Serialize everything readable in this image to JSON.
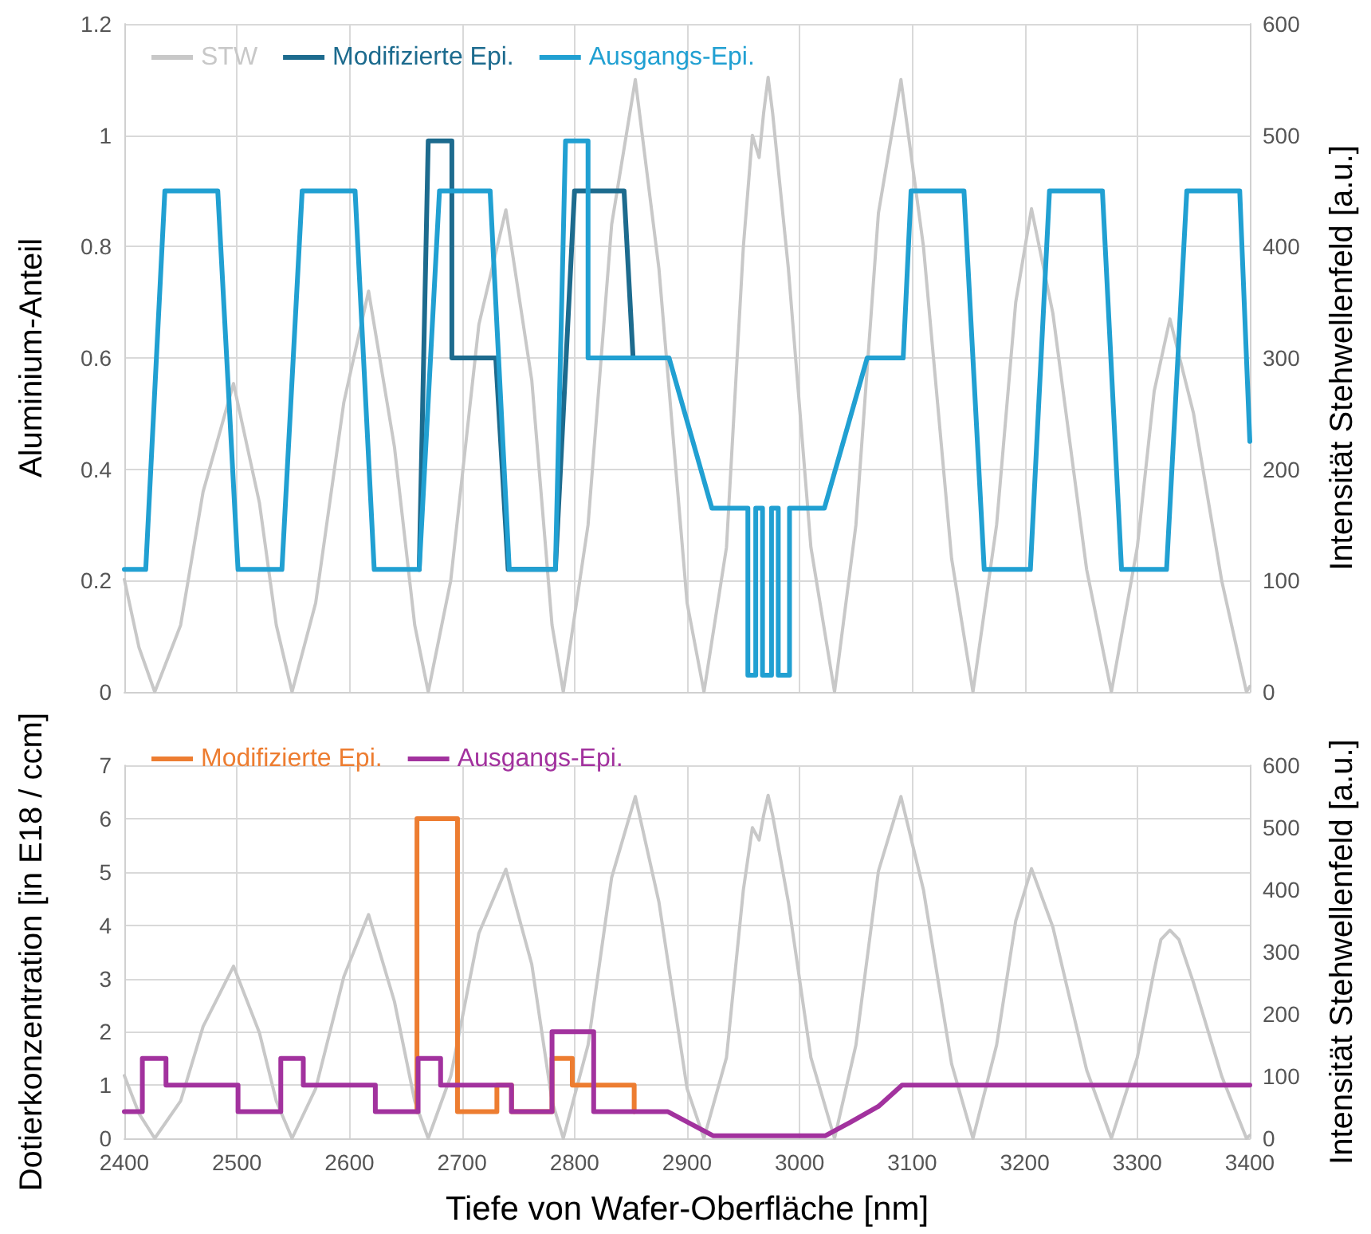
{
  "chart_data": [
    {
      "type": "line",
      "ylabel": "Aluminium-Anteil",
      "y2label": "Intensität Stehwellenfeld [a.u.]",
      "xlim": [
        2400,
        3400
      ],
      "xticks": [
        2400,
        2500,
        2600,
        2700,
        2800,
        2900,
        3000,
        3100,
        3200,
        3300,
        3400
      ],
      "ylim": [
        0,
        1.2
      ],
      "yticks": [
        0,
        0.2,
        0.4,
        0.6,
        0.8,
        1,
        1.2
      ],
      "y2lim": [
        0,
        600
      ],
      "y2ticks": [
        0,
        100,
        200,
        300,
        400,
        500,
        600
      ],
      "grid": true,
      "legend": "top left",
      "marker": "none",
      "tick_labels": "y",
      "series": [
        {
          "name": "STW",
          "color": "#c8c8c8",
          "axis": "y2",
          "x": [
            2400,
            2413,
            2427,
            2450,
            2470,
            2497,
            2520,
            2535,
            2549,
            2570,
            2595,
            2617,
            2640,
            2658,
            2670,
            2690,
            2715,
            2739,
            2762,
            2780,
            2790,
            2812,
            2833,
            2854,
            2875,
            2900,
            2915,
            2935,
            2950,
            2958,
            2964,
            2968,
            2972,
            2976,
            2980,
            2990,
            3010,
            3031,
            3050,
            3070,
            3090,
            3110,
            3135,
            3154,
            3175,
            3192,
            3206,
            3225,
            3255,
            3277,
            3300,
            3315,
            3329,
            3350,
            3375,
            3397,
            3400
          ],
          "values": [
            101,
            40,
            0,
            60,
            180,
            277,
            170,
            60,
            0,
            80,
            260,
            360,
            220,
            60,
            0,
            100,
            330,
            433,
            280,
            60,
            0,
            150,
            420,
            550,
            380,
            80,
            0,
            130,
            400,
            500,
            480,
            520,
            552,
            520,
            480,
            380,
            130,
            0,
            150,
            430,
            550,
            400,
            120,
            0,
            150,
            350,
            434,
            340,
            110,
            0,
            130,
            270,
            335,
            250,
            100,
            0,
            5
          ]
        },
        {
          "name": "Modifizierte Epi.",
          "color": "#1d6b8e",
          "x": [
            2662,
            2670,
            2691,
            2691,
            2730,
            2741,
            2783,
            2800,
            2844,
            2852
          ],
          "values": [
            0.22,
            0.99,
            0.99,
            0.6,
            0.6,
            0.22,
            0.22,
            0.9,
            0.9,
            0.6
          ]
        },
        {
          "name": "Ausgangs-Epi.",
          "color": "#21a0d2",
          "x": [
            2400,
            2419,
            2436,
            2483,
            2501,
            2540,
            2558,
            2605,
            2622,
            2662,
            2680,
            2725,
            2742,
            2783,
            2792,
            2812,
            2812,
            2884,
            2922,
            2954,
            2954,
            2961,
            2961,
            2967,
            2967,
            2975,
            2975,
            2981,
            2981,
            2991,
            2991,
            3022,
            3060,
            3092,
            3099,
            3146,
            3164,
            3205,
            3222,
            3269,
            3286,
            3326,
            3344,
            3391,
            3400
          ],
          "values": [
            0.22,
            0.22,
            0.9,
            0.9,
            0.22,
            0.22,
            0.9,
            0.9,
            0.22,
            0.22,
            0.9,
            0.9,
            0.22,
            0.22,
            0.99,
            0.99,
            0.6,
            0.6,
            0.33,
            0.33,
            0.03,
            0.03,
            0.33,
            0.33,
            0.03,
            0.03,
            0.33,
            0.33,
            0.03,
            0.03,
            0.33,
            0.33,
            0.6,
            0.6,
            0.9,
            0.9,
            0.22,
            0.22,
            0.9,
            0.9,
            0.22,
            0.22,
            0.9,
            0.9,
            0.45
          ]
        }
      ]
    },
    {
      "type": "line",
      "xlabel": "Tiefe von Wafer-Oberfläche [nm]",
      "ylabel": "Dotierkonzentration [in E18 / ccm]",
      "y2label": "Intensität Stehwellenfeld [a.u.]",
      "xlim": [
        2400,
        3400
      ],
      "xticks": [
        2400,
        2500,
        2600,
        2700,
        2800,
        2900,
        3000,
        3100,
        3200,
        3300,
        3400
      ],
      "ylim": [
        0,
        7
      ],
      "yticks": [
        0,
        1,
        2,
        3,
        4,
        5,
        6,
        7
      ],
      "y2lim": [
        0,
        600
      ],
      "y2ticks": [
        0,
        100,
        200,
        300,
        400,
        500,
        600
      ],
      "grid": true,
      "legend": "top left",
      "marker": "none",
      "series": [
        {
          "color": "#c8c8c8",
          "axis": "y2",
          "x": [
            2400,
            2413,
            2427,
            2450,
            2470,
            2497,
            2520,
            2535,
            2549,
            2570,
            2595,
            2617,
            2640,
            2658,
            2670,
            2690,
            2715,
            2739,
            2762,
            2780,
            2790,
            2812,
            2833,
            2854,
            2875,
            2900,
            2915,
            2935,
            2950,
            2958,
            2964,
            2968,
            2972,
            2976,
            2980,
            2990,
            3010,
            3031,
            3050,
            3070,
            3090,
            3110,
            3135,
            3154,
            3175,
            3192,
            3206,
            3225,
            3255,
            3277,
            3300,
            3315,
            3321,
            3329,
            3337,
            3350,
            3375,
            3397,
            3400
          ],
          "values": [
            101,
            40,
            0,
            60,
            180,
            277,
            170,
            60,
            0,
            80,
            260,
            360,
            220,
            60,
            0,
            100,
            330,
            433,
            280,
            60,
            0,
            150,
            420,
            550,
            380,
            80,
            0,
            130,
            400,
            500,
            480,
            520,
            552,
            520,
            480,
            380,
            130,
            0,
            150,
            430,
            550,
            400,
            120,
            0,
            150,
            350,
            434,
            340,
            110,
            0,
            130,
            270,
            320,
            335,
            320,
            250,
            100,
            0,
            5
          ]
        },
        {
          "name": "Modifizierte Epi.",
          "color": "#ed7d31",
          "x": [
            2660,
            2660,
            2696,
            2696,
            2731,
            2731,
            2744,
            2744,
            2780,
            2780,
            2798,
            2798,
            2853,
            2853
          ],
          "values": [
            0.5,
            6,
            6,
            0.5,
            0.5,
            1,
            1,
            0.5,
            0.5,
            1.5,
            1.5,
            1,
            1,
            0.5
          ]
        },
        {
          "name": "Ausgangs-Epi.",
          "color": "#a2329e",
          "x": [
            2400,
            2416,
            2416,
            2437,
            2437,
            2501,
            2501,
            2539,
            2539,
            2559,
            2559,
            2623,
            2623,
            2661,
            2661,
            2681,
            2681,
            2744,
            2744,
            2780,
            2780,
            2817,
            2817,
            2883,
            2923,
            3023,
            3045,
            3070,
            3091,
            3400
          ],
          "values": [
            0.5,
            0.5,
            1.5,
            1.5,
            1,
            1,
            0.5,
            0.5,
            1.5,
            1.5,
            1,
            1,
            0.5,
            0.5,
            1.5,
            1.5,
            1,
            1,
            0.5,
            0.5,
            2,
            2,
            0.5,
            0.5,
            0.05,
            0.05,
            0.3,
            0.6,
            1,
            1
          ]
        }
      ]
    }
  ]
}
